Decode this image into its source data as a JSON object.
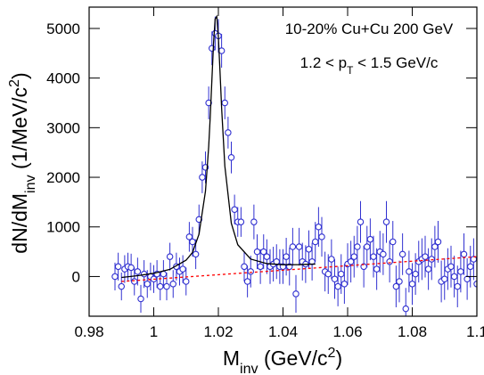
{
  "chart_data": {
    "type": "scatter",
    "annotations": [
      [
        {
          "text": "10-20% Cu+Cu 200 GeV"
        }
      ],
      [
        {
          "text": "1.2 < p"
        },
        {
          "text": "T",
          "sub": true
        },
        {
          "text": " < 1.5 GeV/c"
        }
      ]
    ],
    "x_label": [
      {
        "text": "M"
      },
      {
        "text": "inv",
        "sub": true
      },
      {
        "text": " (GeV/c"
      },
      {
        "text": "2",
        "sup": true
      },
      {
        "text": ")"
      }
    ],
    "y_label": [
      {
        "text": "dN/dM"
      },
      {
        "text": "inv",
        "sub": true
      },
      {
        "text": " (1/MeV/c"
      },
      {
        "text": "2",
        "sup": true
      },
      {
        "text": ")"
      }
    ],
    "xlim": [
      0.98,
      1.1
    ],
    "ylim": [
      -800,
      5430
    ],
    "xticks": [
      0.98,
      1,
      1.02,
      1.04,
      1.06,
      1.08,
      1.1
    ],
    "yticks": [
      0,
      1000,
      2000,
      3000,
      4000,
      5000
    ],
    "series": [
      {
        "kind": "points",
        "color": "#3030d0",
        "x": [
          0.988,
          0.989,
          0.99,
          0.991,
          0.992,
          0.993,
          0.994,
          0.995,
          0.996,
          0.997,
          0.998,
          0.999,
          1.0,
          1.001,
          1.002,
          1.003,
          1.004,
          1.005,
          1.006,
          1.007,
          1.008,
          1.009,
          1.01,
          1.011,
          1.012,
          1.013,
          1.014,
          1.015,
          1.016,
          1.017,
          1.018,
          1.019,
          1.02,
          1.021,
          1.022,
          1.023,
          1.024,
          1.025,
          1.026,
          1.027,
          1.028,
          1.029,
          1.03,
          1.031,
          1.032,
          1.033,
          1.034,
          1.035,
          1.036,
          1.037,
          1.038,
          1.039,
          1.04,
          1.041,
          1.042,
          1.043,
          1.044,
          1.045,
          1.046,
          1.047,
          1.048,
          1.049,
          1.05,
          1.051,
          1.052,
          1.053,
          1.054,
          1.055,
          1.056,
          1.057,
          1.058,
          1.059,
          1.06,
          1.061,
          1.062,
          1.063,
          1.064,
          1.065,
          1.066,
          1.067,
          1.068,
          1.069,
          1.07,
          1.071,
          1.072,
          1.073,
          1.074,
          1.075,
          1.076,
          1.077,
          1.078,
          1.079,
          1.08,
          1.081,
          1.082,
          1.083,
          1.084,
          1.085,
          1.086,
          1.087,
          1.088,
          1.089,
          1.09,
          1.091,
          1.092,
          1.093,
          1.094,
          1.095,
          1.096,
          1.097,
          1.098,
          1.099,
          1.1
        ],
        "values": [
          0,
          200,
          -200,
          150,
          200,
          180,
          -100,
          100,
          -450,
          50,
          -150,
          0,
          -50,
          50,
          -200,
          50,
          -200,
          400,
          -150,
          200,
          100,
          150,
          -100,
          800,
          700,
          450,
          1150,
          2000,
          2200,
          3500,
          4600,
          4900,
          4850,
          4550,
          3500,
          2900,
          2400,
          1350,
          1100,
          1100,
          200,
          -100,
          100,
          1100,
          500,
          200,
          500,
          400,
          200,
          250,
          300,
          200,
          200,
          400,
          200,
          600,
          -350,
          600,
          300,
          250,
          550,
          300,
          700,
          1000,
          800,
          100,
          50,
          350,
          -50,
          -200,
          50,
          -150,
          250,
          300,
          400,
          600,
          1100,
          200,
          600,
          750,
          400,
          150,
          500,
          450,
          1100,
          300,
          700,
          -200,
          -100,
          450,
          -650,
          100,
          -150,
          50,
          300,
          350,
          400,
          150,
          350,
          600,
          700,
          -100,
          -50,
          150,
          200,
          0,
          -200,
          100,
          450,
          -50,
          200,
          350,
          -150
        ],
        "errors": [
          280,
          280,
          280,
          280,
          280,
          280,
          280,
          280,
          280,
          280,
          280,
          280,
          280,
          280,
          280,
          280,
          280,
          280,
          280,
          280,
          280,
          280,
          280,
          300,
          300,
          300,
          300,
          320,
          320,
          330,
          340,
          340,
          340,
          340,
          330,
          320,
          320,
          300,
          300,
          300,
          300,
          320,
          320,
          350,
          350,
          350,
          350,
          350,
          350,
          350,
          350,
          350,
          350,
          380,
          380,
          380,
          380,
          380,
          380,
          380,
          380,
          380,
          400,
          400,
          400,
          400,
          400,
          400,
          400,
          400,
          400,
          400,
          420,
          420,
          420,
          420,
          420,
          420,
          420,
          420,
          420,
          420,
          420,
          420,
          420,
          420,
          420,
          420,
          420,
          420,
          420,
          420,
          420,
          420,
          420,
          420,
          420,
          420,
          420,
          420,
          420,
          420,
          420,
          420,
          420,
          420,
          420,
          420,
          420,
          420,
          420,
          420,
          420
        ]
      },
      {
        "kind": "line",
        "color": "#000000",
        "x": [
          0.99,
          0.995,
          1.0,
          1.005,
          1.01,
          1.012,
          1.014,
          1.016,
          1.017,
          1.0175,
          1.018,
          1.0185,
          1.019,
          1.0195,
          1.02,
          1.0205,
          1.021,
          1.022,
          1.024,
          1.026,
          1.03,
          1.035,
          1.04,
          1.045,
          1.05
        ],
        "values": [
          -19,
          17,
          65,
          144,
          329,
          486,
          853,
          1718,
          2616,
          3246,
          3975,
          4697,
          5191,
          5244,
          4827,
          4137,
          3401,
          2226,
          1075,
          641,
          352,
          260,
          238,
          240,
          251
        ]
      },
      {
        "kind": "dashed",
        "color": "#ff0000",
        "x": [
          0.99,
          1.1
        ],
        "values": [
          -100,
          400
        ]
      }
    ]
  }
}
